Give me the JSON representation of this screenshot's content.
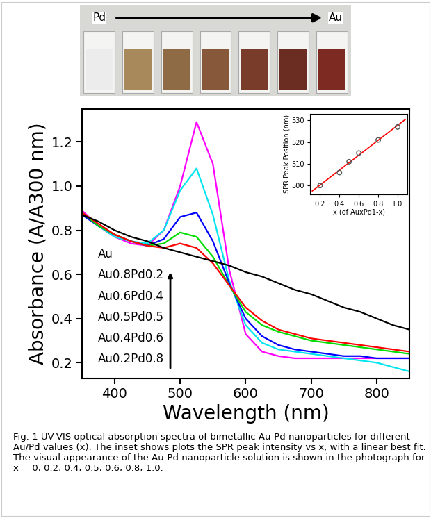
{
  "photo": {
    "labels": [
      "Pd",
      "Au"
    ],
    "colors": [
      "#ececec",
      "#a8895c",
      "#8f6b45",
      "#87583a",
      "#7a3c2a",
      "#6b2c22",
      "#7c2a22"
    ]
  },
  "chart_data": [
    {
      "type": "line",
      "x_label": "Wavelength (nm)",
      "y_label": "Absorbance (A/A300 nm)",
      "x": [
        350,
        375,
        400,
        425,
        450,
        475,
        500,
        525,
        550,
        575,
        600,
        625,
        650,
        675,
        700,
        725,
        750,
        775,
        800,
        825,
        850
      ],
      "xlim": [
        350,
        850
      ],
      "xticks": [
        400,
        500,
        600,
        700,
        800
      ],
      "ylim": [
        0.13,
        1.35
      ],
      "yticks": [
        0.2,
        0.4,
        0.6,
        0.8,
        1.0,
        1.2
      ],
      "series": [
        {
          "name": "Au",
          "color": "#ff00ff",
          "values": [
            0.89,
            0.82,
            0.77,
            0.74,
            0.73,
            0.8,
            1.0,
            1.29,
            1.1,
            0.62,
            0.33,
            0.25,
            0.23,
            0.22,
            0.22,
            0.22,
            0.22,
            0.22,
            0.22,
            0.22,
            0.22
          ]
        },
        {
          "name": "Au0.8Pd0.2",
          "color": "#00e5ee",
          "values": [
            0.88,
            0.82,
            0.77,
            0.75,
            0.74,
            0.8,
            0.98,
            1.08,
            0.87,
            0.57,
            0.37,
            0.29,
            0.26,
            0.25,
            0.24,
            0.23,
            0.22,
            0.21,
            0.2,
            0.18,
            0.16
          ]
        },
        {
          "name": "Au0.6Pd0.4",
          "color": "#0000ff",
          "values": [
            0.87,
            0.82,
            0.78,
            0.75,
            0.73,
            0.76,
            0.86,
            0.88,
            0.75,
            0.56,
            0.4,
            0.32,
            0.28,
            0.26,
            0.25,
            0.24,
            0.23,
            0.23,
            0.22,
            0.22,
            0.22
          ]
        },
        {
          "name": "Au0.5Pd0.5",
          "color": "#00dd00",
          "values": [
            0.88,
            0.82,
            0.78,
            0.75,
            0.73,
            0.74,
            0.79,
            0.77,
            0.68,
            0.55,
            0.43,
            0.37,
            0.34,
            0.32,
            0.3,
            0.29,
            0.28,
            0.27,
            0.26,
            0.25,
            0.24
          ]
        },
        {
          "name": "Au0.4Pd0.6",
          "color": "#ff0000",
          "values": [
            0.88,
            0.83,
            0.78,
            0.75,
            0.73,
            0.72,
            0.74,
            0.72,
            0.65,
            0.55,
            0.45,
            0.39,
            0.35,
            0.33,
            0.31,
            0.3,
            0.29,
            0.28,
            0.27,
            0.26,
            0.25
          ]
        },
        {
          "name": "Au0.2Pd0.8",
          "color": "#000000",
          "values": [
            0.87,
            0.84,
            0.8,
            0.77,
            0.75,
            0.72,
            0.7,
            0.68,
            0.66,
            0.64,
            0.61,
            0.59,
            0.56,
            0.53,
            0.51,
            0.48,
            0.45,
            0.43,
            0.4,
            0.37,
            0.35
          ]
        }
      ]
    },
    {
      "type": "scatter",
      "x_label": "x (of AuxPd1-x)",
      "y_label": "SPR Peak Position (nm)",
      "xlim": [
        0.1,
        1.1
      ],
      "xticks": [
        0.2,
        0.4,
        0.6,
        0.8,
        1.0
      ],
      "ylim": [
        496,
        533
      ],
      "yticks": [
        500,
        510,
        520,
        530
      ],
      "series": [
        {
          "type": "scatter",
          "marker": "o",
          "color": "#555555",
          "x": [
            0.2,
            0.4,
            0.5,
            0.6,
            0.8,
            1.0
          ],
          "values": [
            500,
            506,
            511,
            515,
            521,
            527
          ]
        },
        {
          "type": "line",
          "line_style": "solid",
          "color": "#ff0000",
          "x": [
            0.12,
            1.08
          ],
          "values": [
            497.5,
            530.5
          ]
        }
      ]
    }
  ],
  "caption": "Fig. 1 UV-VIS optical absorption spectra of bimetallic Au-Pd nanoparticles for different Au/Pd values (x). The inset shows plots the SPR peak intensity vs x, with a linear best fit. The visual appearance of the Au-Pd nanoparticle solution is shown in the photograph for x = 0, 0.2, 0.4, 0.5, 0.6, 0.8, 1.0."
}
